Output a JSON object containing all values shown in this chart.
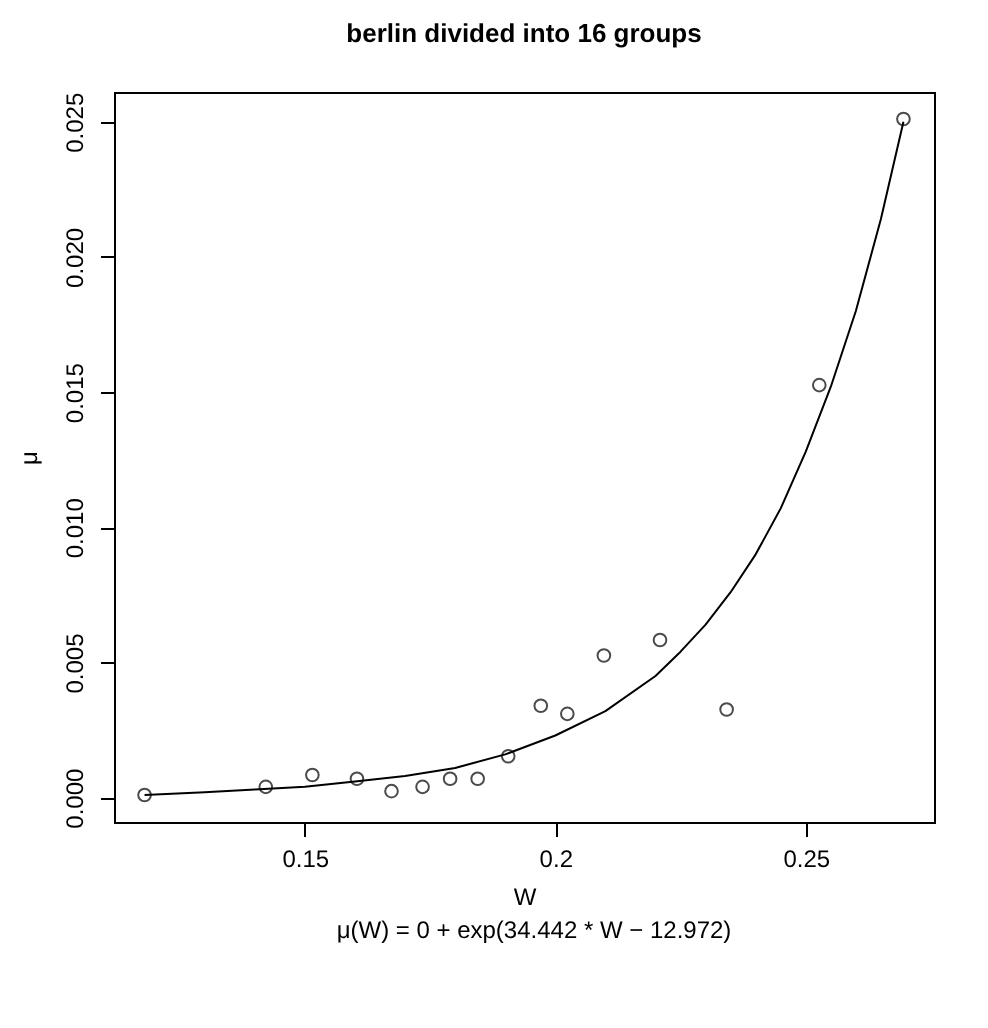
{
  "chart_data": {
    "type": "scatter",
    "title": "berlin divided into 16 groups",
    "xlabel": "W",
    "ylabel": "μ",
    "annotations": [
      "μ(W) = 0 + exp(34.442 * W − 12.972)"
    ],
    "xlim": [
      0.1119,
      0.2756
    ],
    "ylim": [
      -0.0009,
      0.0261
    ],
    "xticks": [
      0.15,
      0.2,
      0.25
    ],
    "yticks": [
      {
        "value": 0,
        "label": "0.000"
      },
      {
        "value": 0.005,
        "label": "0.005"
      },
      {
        "value": 0.01,
        "label": "0.010"
      },
      {
        "value": 0.015,
        "label": "0.015"
      },
      {
        "value": 0.02,
        "label": "0.020"
      },
      {
        "value": 0.025,
        "label": "0.025"
      }
    ],
    "grid": false,
    "series": [
      {
        "marker": "circle",
        "color": "#000000",
        "x": [
          0.118,
          0.1422,
          0.1515,
          0.1604,
          0.1673,
          0.1735,
          0.179,
          0.1845,
          0.1906,
          0.1971,
          0.2024,
          0.2097,
          0.2209,
          0.2342,
          0.2527,
          0.2695
        ],
        "values": [
          0.0001,
          0.0004,
          0.00084,
          0.0007,
          0.00024,
          0.0004,
          0.0007,
          0.0007,
          0.00153,
          0.0034,
          0.0031,
          0.00526,
          0.00583,
          0.00326,
          0.01526,
          0.0251
        ]
      },
      {
        "type": "line",
        "color": "#000000",
        "x": [
          0.118,
          0.13,
          0.14,
          0.15,
          0.16,
          0.17,
          0.18,
          0.19,
          0.2,
          0.21,
          0.22,
          0.225,
          0.23,
          0.235,
          0.24,
          0.245,
          0.25,
          0.255,
          0.26,
          0.265,
          0.2695
        ],
        "values": [
          0.0001,
          0.0002,
          0.0003,
          0.0004,
          0.0006,
          0.0008,
          0.0011,
          0.0016,
          0.0023,
          0.0032,
          0.0045,
          0.0054,
          0.0064,
          0.0076,
          0.009,
          0.0107,
          0.0128,
          0.0152,
          0.018,
          0.0214,
          0.025
        ]
      }
    ]
  }
}
